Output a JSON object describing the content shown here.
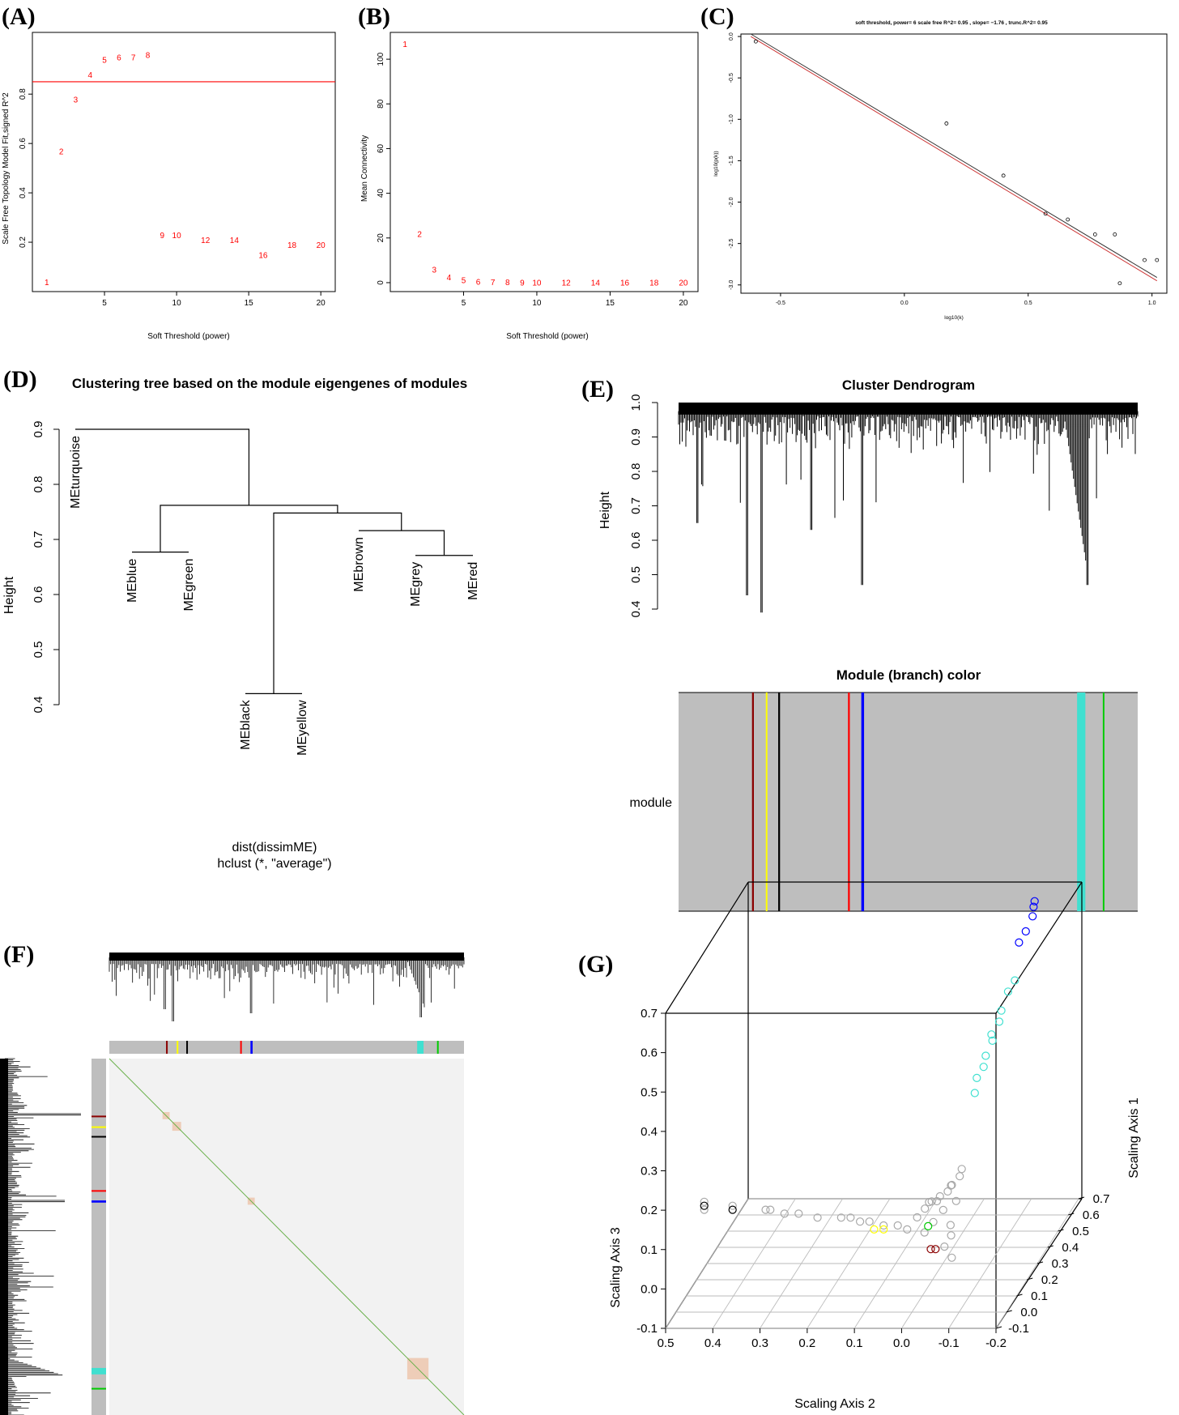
{
  "colors": {
    "red": "#ff0000",
    "darkred": "#8b0000",
    "yellow": "#ffff00",
    "black": "#000000",
    "blue": "#0000ff",
    "turquoise": "#40e0d0",
    "green": "#00cc00",
    "grey": "#bebebe",
    "heatbg": "#f2f2f2",
    "diag": "#6ab04c",
    "hubs": "#e8a070"
  },
  "chart_data": [
    {
      "id": "A",
      "panel_label": "(A)",
      "type": "scatter",
      "marker": "text",
      "xlabel": "Soft Threshold (power)",
      "ylabel": "Scale Free Topology Model Fit,signed R^2",
      "xlim": [
        0,
        21
      ],
      "ylim": [
        0,
        1.05
      ],
      "xticks": [
        5,
        10,
        15,
        20
      ],
      "yticks": [
        0.2,
        0.4,
        0.6,
        0.8
      ],
      "hline": 0.85,
      "points": [
        {
          "x": 1,
          "y": 0.04,
          "label": "1"
        },
        {
          "x": 2,
          "y": 0.57,
          "label": "2"
        },
        {
          "x": 3,
          "y": 0.78,
          "label": "3"
        },
        {
          "x": 4,
          "y": 0.88,
          "label": "4"
        },
        {
          "x": 5,
          "y": 0.94,
          "label": "5"
        },
        {
          "x": 6,
          "y": 0.95,
          "label": "6"
        },
        {
          "x": 7,
          "y": 0.95,
          "label": "7"
        },
        {
          "x": 8,
          "y": 0.96,
          "label": "8"
        },
        {
          "x": 9,
          "y": 0.23,
          "label": "9"
        },
        {
          "x": 10,
          "y": 0.23,
          "label": "10"
        },
        {
          "x": 12,
          "y": 0.21,
          "label": "12"
        },
        {
          "x": 14,
          "y": 0.21,
          "label": "14"
        },
        {
          "x": 16,
          "y": 0.15,
          "label": "16"
        },
        {
          "x": 18,
          "y": 0.19,
          "label": "18"
        },
        {
          "x": 20,
          "y": 0.19,
          "label": "20"
        }
      ]
    },
    {
      "id": "B",
      "panel_label": "(B)",
      "type": "scatter",
      "marker": "text",
      "xlabel": "Soft Threshold (power)",
      "ylabel": "Mean Connectivity",
      "xlim": [
        0,
        21
      ],
      "ylim": [
        -4,
        112
      ],
      "xticks": [
        5,
        10,
        15,
        20
      ],
      "yticks": [
        0,
        20,
        40,
        60,
        80,
        100
      ],
      "points": [
        {
          "x": 1,
          "y": 107,
          "label": "1"
        },
        {
          "x": 2,
          "y": 22,
          "label": "2"
        },
        {
          "x": 3,
          "y": 6,
          "label": "3"
        },
        {
          "x": 4,
          "y": 2.5,
          "label": "4"
        },
        {
          "x": 5,
          "y": 1.2,
          "label": "5"
        },
        {
          "x": 6,
          "y": 0.6,
          "label": "6"
        },
        {
          "x": 7,
          "y": 0.4,
          "label": "7"
        },
        {
          "x": 8,
          "y": 0.3,
          "label": "8"
        },
        {
          "x": 9,
          "y": 0.2,
          "label": "9"
        },
        {
          "x": 10,
          "y": 0.1,
          "label": "10"
        },
        {
          "x": 12,
          "y": 0.1,
          "label": "12"
        },
        {
          "x": 14,
          "y": 0.1,
          "label": "14"
        },
        {
          "x": 16,
          "y": 0.1,
          "label": "16"
        },
        {
          "x": 18,
          "y": 0.1,
          "label": "18"
        },
        {
          "x": 20,
          "y": 0.1,
          "label": "20"
        }
      ]
    },
    {
      "id": "C",
      "panel_label": "(C)",
      "type": "scatter",
      "title": "soft threshold, power= 6  scale free R^2= 0.95 , slope= −1.76 , trunc.R^2= 0.95",
      "xlabel": "log10(k)",
      "ylabel": "log10(p(k))",
      "xlim": [
        -0.66,
        1.06
      ],
      "ylim": [
        -3.1,
        0.03
      ],
      "xticks": [
        -0.5,
        0.0,
        0.5,
        1.0
      ],
      "xtick_labels": [
        "-0.5",
        "0.0",
        "0.5",
        "1.0"
      ],
      "yticks": [
        0.0,
        -0.5,
        -1.0,
        -1.5,
        -2.0,
        -2.5,
        -3.0
      ],
      "yticks_labels": [
        "0.0",
        "-0.5",
        "-1.0",
        "-1.5",
        "-2.0",
        "-2.5",
        "-3.0"
      ],
      "fit_line": [
        [
          -0.62,
          0.0
        ],
        [
          1.02,
          -2.95
        ]
      ],
      "fit_line2": [
        [
          -0.62,
          0.03
        ],
        [
          1.02,
          -2.91
        ]
      ],
      "points": [
        {
          "x": -0.6,
          "y": -0.06
        },
        {
          "x": 0.17,
          "y": -1.05
        },
        {
          "x": 0.4,
          "y": -1.68
        },
        {
          "x": 0.57,
          "y": -2.14
        },
        {
          "x": 0.66,
          "y": -2.21
        },
        {
          "x": 0.77,
          "y": -2.39
        },
        {
          "x": 0.85,
          "y": -2.39
        },
        {
          "x": 0.87,
          "y": -2.98
        },
        {
          "x": 0.97,
          "y": -2.7
        },
        {
          "x": 1.02,
          "y": -2.7
        }
      ]
    },
    {
      "id": "D",
      "panel_label": "(D)",
      "type": "dendrogram",
      "title": "Clustering tree based on the module eigengenes of modules",
      "ylabel": "Height",
      "ylim": [
        0.4,
        0.9
      ],
      "yticks": [
        0.4,
        0.5,
        0.6,
        0.7,
        0.8,
        0.9
      ],
      "leaves": [
        {
          "name": "MEturquoise",
          "pos": 0,
          "height": 0.9
        },
        {
          "name": "MEblue",
          "pos": 1,
          "height": 0.677
        },
        {
          "name": "MEgreen",
          "pos": 2,
          "height": 0.677
        },
        {
          "name": "MEblack",
          "pos": 3,
          "height": 0.42
        },
        {
          "name": "MEyellow",
          "pos": 4,
          "height": 0.42
        },
        {
          "name": "MEbrown",
          "pos": 5,
          "height": 0.716
        },
        {
          "name": "MEgrey",
          "pos": 6,
          "height": 0.671
        },
        {
          "name": "MEred",
          "pos": 7,
          "height": 0.671
        }
      ],
      "merges": [
        {
          "a": "L3",
          "b": "L4",
          "h": 0.42,
          "id": "m1"
        },
        {
          "a": "L6",
          "b": "L7",
          "h": 0.671,
          "id": "m2"
        },
        {
          "a": "L1",
          "b": "L2",
          "h": 0.677,
          "id": "m3"
        },
        {
          "a": "L5",
          "b": "m2",
          "h": 0.716,
          "id": "m4"
        },
        {
          "a": "m1",
          "b": "m4",
          "h": 0.748,
          "id": "m5"
        },
        {
          "a": "m3",
          "b": "m5",
          "h": 0.762,
          "id": "m6"
        },
        {
          "a": "L0",
          "b": "m6",
          "h": 0.9,
          "id": "m7"
        }
      ],
      "caption_line1": "dist(dissimME)",
      "caption_line2": "hclust (*, \"average\")"
    },
    {
      "id": "E",
      "panel_label": "(E)",
      "type": "dendrogram",
      "title": "Cluster Dendrogram",
      "ylabel": "Height",
      "ylim": [
        0.4,
        1.0
      ],
      "yticks": [
        0.4,
        0.5,
        0.6,
        0.7,
        0.8,
        0.9,
        1.0
      ],
      "deep_dips": [
        {
          "at": 0.15,
          "h": 0.44
        },
        {
          "at": 0.18,
          "h": 0.39
        },
        {
          "at": 0.4,
          "h": 0.47
        },
        {
          "at": 0.89,
          "h": 0.47
        },
        {
          "at": 0.04,
          "h": 0.65
        },
        {
          "at": 0.29,
          "h": 0.63
        }
      ],
      "color_bar_title": "Module (branch) color",
      "color_bar_label": "module",
      "modules": [
        {
          "color": "darkred",
          "from": 0.16,
          "to": 0.164
        },
        {
          "color": "yellow",
          "from": 0.19,
          "to": 0.193
        },
        {
          "color": "black",
          "from": 0.217,
          "to": 0.221
        },
        {
          "color": "red",
          "from": 0.369,
          "to": 0.373
        },
        {
          "color": "blue",
          "from": 0.398,
          "to": 0.404
        },
        {
          "color": "turquoise",
          "from": 0.868,
          "to": 0.886
        },
        {
          "color": "green",
          "from": 0.924,
          "to": 0.927
        }
      ]
    },
    {
      "id": "F",
      "panel_label": "(F)",
      "type": "heatmap",
      "description_hidden": true,
      "modules": [
        {
          "color": "darkred",
          "from": 0.16,
          "to": 0.164
        },
        {
          "color": "yellow",
          "from": 0.19,
          "to": 0.193
        },
        {
          "color": "black",
          "from": 0.217,
          "to": 0.221
        },
        {
          "color": "red",
          "from": 0.369,
          "to": 0.373
        },
        {
          "color": "blue",
          "from": 0.398,
          "to": 0.404
        },
        {
          "color": "turquoise",
          "from": 0.868,
          "to": 0.886
        },
        {
          "color": "green",
          "from": 0.924,
          "to": 0.927
        }
      ]
    },
    {
      "id": "G",
      "panel_label": "(G)",
      "type": "scatter",
      "projection": "3d",
      "xlabel": "Scaling Axis 2",
      "ylabel": "Scaling Axis 1",
      "zlabel": "Scaling Axis 3",
      "axis2_range": [
        0.5,
        -0.2
      ],
      "axis1_range": [
        -0.1,
        0.7
      ],
      "axis3_range": [
        -0.1,
        0.7
      ],
      "axis2_ticks": [
        0.5,
        0.4,
        0.3,
        0.2,
        0.1,
        0.0,
        -0.1,
        -0.2
      ],
      "axis2_tick_labels": [
        "0.5",
        "0.4",
        "0.3",
        "0.2",
        "0.1",
        "0.0",
        "-0.1",
        "-0.2"
      ],
      "axis1_ticks": [
        -0.1,
        0.0,
        0.1,
        0.2,
        0.3,
        0.4,
        0.5,
        0.6,
        0.7
      ],
      "axis1_tick_labels": [
        "-0.1",
        "0.0",
        "0.1",
        "0.2",
        "0.3",
        "0.4",
        "0.5",
        "0.6",
        "0.7"
      ],
      "axis3_ticks": [
        -0.1,
        0.0,
        0.1,
        0.2,
        0.3,
        0.4,
        0.5,
        0.6,
        0.7
      ],
      "axis3_tick_labels": [
        "-0.1",
        "0.0",
        "0.1",
        "0.2",
        "0.3",
        "0.4",
        "0.5",
        "0.6",
        "0.7"
      ],
      "groups": [
        {
          "module": "grey",
          "points": [
            [
              0.44,
              0.0,
              0.18
            ],
            [
              0.44,
              0.0,
              0.16
            ],
            [
              0.38,
              0.0,
              0.17
            ],
            [
              0.31,
              0.0,
              0.16
            ],
            [
              0.3,
              0.0,
              0.16
            ],
            [
              0.27,
              0.0,
              0.15
            ],
            [
              0.24,
              0.0,
              0.15
            ],
            [
              0.2,
              0.0,
              0.14
            ],
            [
              0.15,
              0.0,
              0.14
            ],
            [
              0.13,
              0.0,
              0.14
            ],
            [
              0.11,
              0.0,
              0.13
            ],
            [
              0.09,
              0.0,
              0.13
            ],
            [
              0.06,
              0.0,
              0.12
            ],
            [
              0.03,
              0.0,
              0.12
            ],
            [
              0.01,
              0.0,
              0.11
            ],
            [
              0.0,
              0.05,
              0.12
            ],
            [
              -0.01,
              0.08,
              0.13
            ],
            [
              -0.01,
              0.12,
              0.13
            ],
            [
              -0.02,
              0.15,
              0.12
            ],
            [
              -0.02,
              0.18,
              0.12
            ],
            [
              -0.03,
              0.21,
              0.12
            ],
            [
              -0.03,
              0.25,
              0.12
            ],
            [
              -0.04,
              0.28,
              0.13
            ],
            [
              -0.04,
              0.3,
              0.14
            ],
            [
              -0.05,
              0.2,
              0.1
            ],
            [
              -0.06,
              0.1,
              0.08
            ],
            [
              -0.07,
              0.06,
              0.07
            ],
            [
              -0.02,
              0.03,
              0.09
            ],
            [
              -0.03,
              0.07,
              0.1
            ],
            [
              -0.04,
              0.12,
              0.11
            ],
            [
              -0.02,
              0.1,
              0.14
            ],
            [
              -0.05,
              0.15,
              0.16
            ],
            [
              -0.06,
              0.04,
              0.05
            ],
            [
              -0.08,
              0.02,
              0.03
            ]
          ]
        },
        {
          "module": "black",
          "points": [
            [
              0.44,
              0.0,
              0.17
            ],
            [
              0.38,
              0.0,
              0.16
            ]
          ]
        },
        {
          "module": "yellow",
          "points": [
            [
              0.08,
              0.0,
              0.11
            ],
            [
              0.06,
              0.0,
              0.11
            ]
          ]
        },
        {
          "module": "darkred",
          "points": [
            [
              -0.04,
              0.0,
              0.06
            ],
            [
              -0.05,
              0.0,
              0.06
            ]
          ]
        },
        {
          "module": "green",
          "points": [
            [
              -0.03,
              0.02,
              0.11
            ]
          ]
        },
        {
          "module": "turquoise",
          "points": [
            [
              -0.05,
              0.38,
              0.3
            ],
            [
              -0.05,
              0.4,
              0.33
            ],
            [
              -0.06,
              0.42,
              0.35
            ],
            [
              -0.06,
              0.44,
              0.37
            ],
            [
              -0.07,
              0.46,
              0.4
            ],
            [
              -0.07,
              0.45,
              0.42
            ],
            [
              -0.08,
              0.48,
              0.44
            ],
            [
              -0.08,
              0.5,
              0.46
            ],
            [
              -0.09,
              0.52,
              0.5
            ],
            [
              -0.1,
              0.54,
              0.52
            ]
          ]
        },
        {
          "module": "blue",
          "points": [
            [
              -0.1,
              0.58,
              0.6
            ],
            [
              -0.11,
              0.6,
              0.62
            ],
            [
              -0.12,
              0.62,
              0.65
            ],
            [
              -0.12,
              0.63,
              0.67
            ],
            [
              -0.12,
              0.64,
              0.68
            ]
          ]
        }
      ]
    }
  ]
}
